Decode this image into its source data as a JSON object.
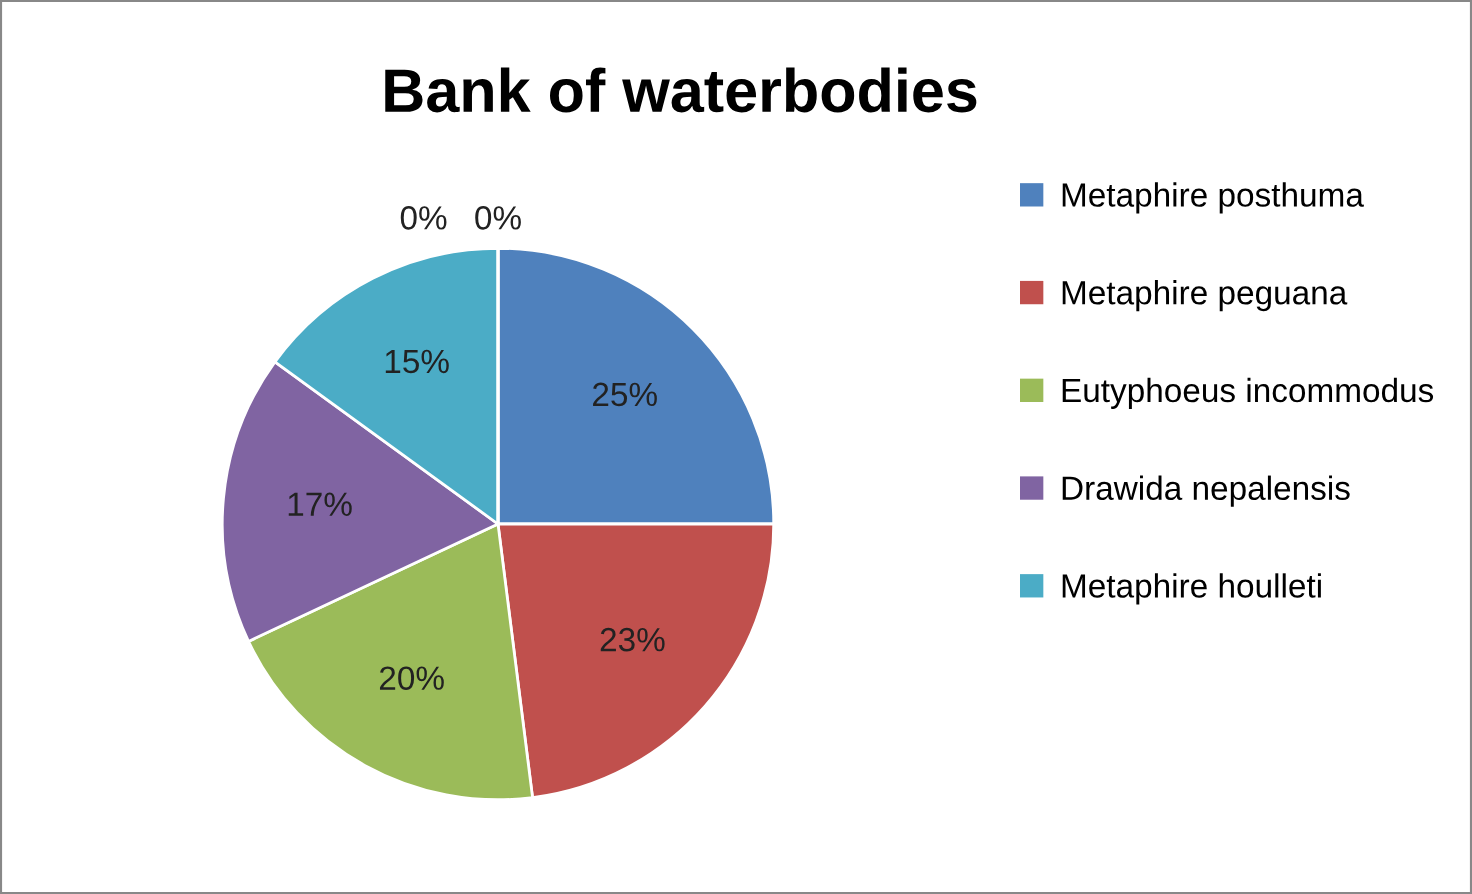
{
  "chart_data": {
    "type": "pie",
    "title": "Bank of waterbodies",
    "categories": [
      "Metaphire posthuma",
      "Metaphire peguana",
      "Eutyphoeus incommodus",
      "Drawida nepalensis",
      "Metaphire houlleti",
      null,
      null
    ],
    "values": [
      25,
      23,
      20,
      17,
      15,
      0,
      0
    ],
    "colors": [
      "#4f81bd",
      "#c0504d",
      "#9bbb59",
      "#8064a2",
      "#4bacc6",
      "#f79646",
      "#2c4d75"
    ],
    "value_labels": [
      "25%",
      "23%",
      "20%",
      "17%",
      "15%",
      "0%",
      "0%"
    ],
    "legend": "right"
  }
}
